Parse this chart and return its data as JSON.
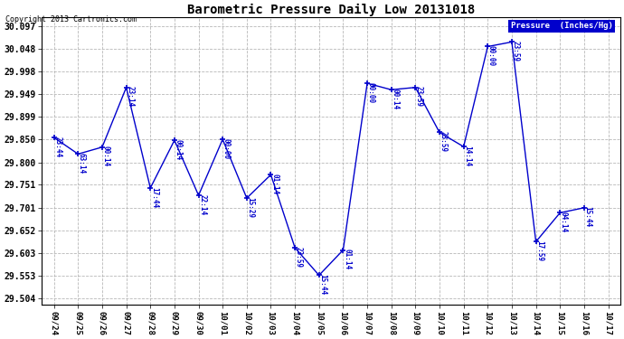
{
  "title": "Barometric Pressure Daily Low 20131018",
  "copyright": "Copyright 2013 Cartronics.com",
  "legend_label": "Pressure  (Inches/Hg)",
  "background_color": "#ffffff",
  "line_color": "#0000cc",
  "ylim_min": 29.49,
  "ylim_max": 30.115,
  "yticks": [
    29.504,
    29.553,
    29.603,
    29.652,
    29.701,
    29.751,
    29.8,
    29.85,
    29.899,
    29.949,
    29.998,
    30.048,
    30.097
  ],
  "points": [
    {
      "xi": 0,
      "y": 29.854,
      "label": "23:44"
    },
    {
      "xi": 1,
      "y": 29.818,
      "label": "63:14"
    },
    {
      "xi": 2,
      "y": 29.833,
      "label": "00:14"
    },
    {
      "xi": 3,
      "y": 29.963,
      "label": "23:14"
    },
    {
      "xi": 4,
      "y": 29.744,
      "label": "17:44"
    },
    {
      "xi": 5,
      "y": 29.848,
      "label": "00:14"
    },
    {
      "xi": 6,
      "y": 29.728,
      "label": "22:14"
    },
    {
      "xi": 7,
      "y": 29.85,
      "label": "00:00"
    },
    {
      "xi": 8,
      "y": 29.722,
      "label": "15:29"
    },
    {
      "xi": 9,
      "y": 29.773,
      "label": "01:14"
    },
    {
      "xi": 10,
      "y": 29.614,
      "label": "23:59"
    },
    {
      "xi": 11,
      "y": 29.554,
      "label": "15:44"
    },
    {
      "xi": 12,
      "y": 29.609,
      "label": "01:14"
    },
    {
      "xi": 13,
      "y": 29.972,
      "label": "00:00"
    },
    {
      "xi": 14,
      "y": 29.958,
      "label": "00:14"
    },
    {
      "xi": 15,
      "y": 29.963,
      "label": "23:59"
    },
    {
      "xi": 16,
      "y": 29.865,
      "label": "23:59"
    },
    {
      "xi": 17,
      "y": 29.834,
      "label": "14:14"
    },
    {
      "xi": 18,
      "y": 30.052,
      "label": "00:00"
    },
    {
      "xi": 19,
      "y": 30.062,
      "label": "23:59"
    },
    {
      "xi": 20,
      "y": 29.627,
      "label": "17:59"
    },
    {
      "xi": 21,
      "y": 29.69,
      "label": "04:14"
    },
    {
      "xi": 22,
      "y": 29.701,
      "label": "15:44"
    }
  ],
  "xlabels": [
    "09/24",
    "09/25",
    "09/26",
    "09/27",
    "09/28",
    "09/29",
    "09/30",
    "10/01",
    "10/02",
    "10/03",
    "10/04",
    "10/05",
    "10/06",
    "10/07",
    "10/08",
    "10/09",
    "10/10",
    "10/11",
    "10/12",
    "10/13",
    "10/14",
    "10/15",
    "10/16",
    "10/17"
  ]
}
